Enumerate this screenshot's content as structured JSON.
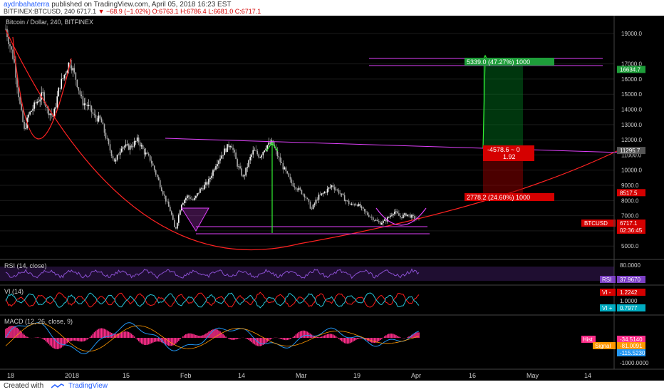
{
  "header": {
    "author": "aydnbahaterra",
    "published_text": "published on TradingView.com, April 05, 2018 16:23 EST",
    "symbol": "BITFINEX:BTCUSD, 240",
    "last": "6717.1",
    "change": "−68.9 (−1.02%)",
    "open": "O:6763.1",
    "high": "H:6786.4",
    "low": "L:6681.0",
    "close": "C:6717.1"
  },
  "footer": {
    "created_with": "Created with",
    "brand": "TradingView"
  },
  "colors": {
    "up_candle": "#ffffff",
    "down_candle": "#aaaaaa",
    "curve": "#ff2222",
    "channel": "#e040fb",
    "arrow": "#33ee33",
    "rsi": "#8a4fd0",
    "vi_plus": "#26c6da",
    "vi_minus": "#ff1e1e",
    "macd_hist": "#ff2d8a",
    "signal": "#ff9800"
  },
  "chart_data": {
    "type": "candlestick",
    "title": "Bitcoin / Dollar, 240, BITFINEX",
    "x_ticks": [
      "18",
      "2018",
      "15",
      "Feb",
      "14",
      "Mar",
      "19",
      "Apr",
      "16",
      "May",
      "14"
    ],
    "y_ticks": [
      "19000.0",
      "17000.0",
      "16000.0",
      "15000.0",
      "14000.0",
      "13000.0",
      "12000.0",
      "11000.0",
      "10000.0",
      "9000.0",
      "8000.0",
      "7000.0",
      "6000.0",
      "5000.0"
    ],
    "ylim": [
      4400,
      19800
    ],
    "price_path": [
      [
        0,
        19300
      ],
      [
        0.02,
        17200
      ],
      [
        0.035,
        14200
      ],
      [
        0.045,
        12600
      ],
      [
        0.055,
        13600
      ],
      [
        0.075,
        14500
      ],
      [
        0.09,
        15000
      ],
      [
        0.1,
        14000
      ],
      [
        0.115,
        13500
      ],
      [
        0.13,
        15500
      ],
      [
        0.145,
        16500
      ],
      [
        0.155,
        17200
      ],
      [
        0.17,
        16000
      ],
      [
        0.185,
        14500
      ],
      [
        0.2,
        14200
      ],
      [
        0.215,
        13500
      ],
      [
        0.23,
        13300
      ],
      [
        0.25,
        11500
      ],
      [
        0.265,
        10500
      ],
      [
        0.28,
        11600
      ],
      [
        0.3,
        11500
      ],
      [
        0.32,
        12000
      ],
      [
        0.335,
        11200
      ],
      [
        0.35,
        10700
      ],
      [
        0.37,
        9300
      ],
      [
        0.385,
        8200
      ],
      [
        0.4,
        7200
      ],
      [
        0.41,
        6000
      ],
      [
        0.425,
        7800
      ],
      [
        0.44,
        8300
      ],
      [
        0.455,
        8000
      ],
      [
        0.47,
        8700
      ],
      [
        0.49,
        9200
      ],
      [
        0.51,
        10500
      ],
      [
        0.53,
        11300
      ],
      [
        0.545,
        11800
      ],
      [
        0.56,
        10400
      ],
      [
        0.575,
        9500
      ],
      [
        0.59,
        10700
      ],
      [
        0.6,
        11300
      ],
      [
        0.615,
        10900
      ],
      [
        0.63,
        11600
      ],
      [
        0.645,
        11800
      ],
      [
        0.66,
        10800
      ],
      [
        0.675,
        10000
      ],
      [
        0.69,
        9200
      ],
      [
        0.71,
        8700
      ],
      [
        0.725,
        8300
      ],
      [
        0.74,
        7400
      ],
      [
        0.755,
        8200
      ],
      [
        0.77,
        8500
      ],
      [
        0.79,
        9000
      ],
      [
        0.805,
        8600
      ],
      [
        0.82,
        8100
      ],
      [
        0.835,
        7700
      ],
      [
        0.85,
        7800
      ],
      [
        0.87,
        7200
      ],
      [
        0.89,
        6800
      ],
      [
        0.905,
        6500
      ],
      [
        0.92,
        6700
      ],
      [
        0.94,
        7300
      ],
      [
        0.955,
        6900
      ],
      [
        0.97,
        7100
      ],
      [
        0.985,
        6900
      ],
      [
        1,
        6717
      ]
    ],
    "horizontal_levels": [
      {
        "value": 6600,
        "color": "#e040fb"
      },
      {
        "value": 6000,
        "color": "#e040fb"
      }
    ],
    "price_labels": [
      {
        "text": "16634.7",
        "value": 16634.7,
        "color": "#1e9e3a"
      },
      {
        "text": "11295.7",
        "value": 11295.7,
        "color": "#555555"
      },
      {
        "text": "8517.5",
        "value": 8517.5,
        "color": "#d50000"
      },
      {
        "text": "6717.1",
        "value": 6717.1,
        "color": "#d50000"
      }
    ],
    "last_price_tag": {
      "symbol": "BTCUSD",
      "price": "6717.1",
      "countdown": "02:36:45"
    },
    "position_tool": {
      "entry": 11295.7,
      "target": 16634.7,
      "stop": 8517.5,
      "target_label": "5339.0 (47.27%) 1000",
      "center_label": "-4578.6 ~ 0",
      "ratio_label": "1.92",
      "stop_label": "2778.2 (24.60%) 1000"
    },
    "indicators": {
      "rsi": {
        "label": "RSI (14, close)",
        "axis": "80.0000",
        "tag": "RSI",
        "value": "37.9670"
      },
      "vi": {
        "label": "VI (14)",
        "axis_mid": "1.0000",
        "minus_tag": "VI -",
        "minus_value": "1.2242",
        "plus_tag": "VI +",
        "plus_value": "0.7977"
      },
      "macd": {
        "label": "MACD (12, 26, close, 9)",
        "axis_neg": "-1000.0000",
        "hist_tag": "Hist",
        "hist_value": "-34.5140",
        "signal_tag": "Signal",
        "signal_value": "-81.0091",
        "macd_value": "-115.5230"
      }
    }
  }
}
